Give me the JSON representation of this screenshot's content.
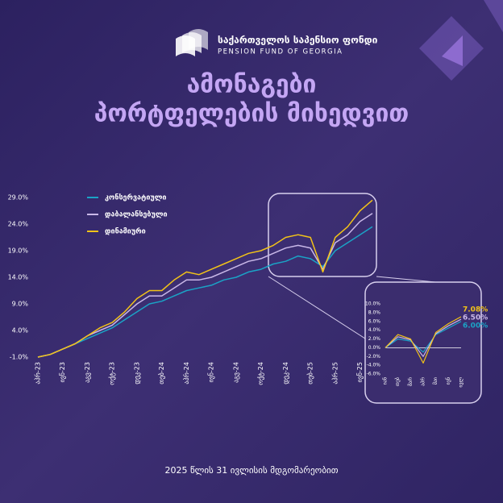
{
  "header": {
    "logo_text": "საქართველოს საპენსიო ფონდი",
    "logo_subtext": "PENSION FUND OF GEORGIA",
    "title": [
      "ამონაგები",
      "პორტფელების მიხედვით"
    ]
  },
  "footer": "2025 წლის 31 ივლისის მდგომარეობით",
  "chart_data": [
    {
      "type": "line",
      "legend": "upper left",
      "categories": [
        "აპრ-23",
        null,
        "ივნ-23",
        null,
        "აგვ-23",
        null,
        "ოქტ-23",
        null,
        "დეკ-23",
        null,
        "თებ-24",
        null,
        "აპრ-24",
        null,
        "ივნ-24",
        null,
        "აგვ-24",
        null,
        "ოქტ-24",
        null,
        "დეკ-24",
        null,
        "თებ-25",
        null,
        "აპრ-25",
        null,
        "ივნ-25",
        null
      ],
      "ylim": [
        -1,
        29
      ],
      "yticks": [
        {
          "value": -1,
          "label": "-1.0%"
        },
        {
          "value": 4,
          "label": "4.0%"
        },
        {
          "value": 9,
          "label": "9.0%"
        },
        {
          "value": 14,
          "label": "14.0%"
        },
        {
          "value": 19,
          "label": "19.0%"
        },
        {
          "value": 24,
          "label": "24.0%"
        },
        {
          "value": 29,
          "label": "29.0%"
        }
      ],
      "series": [
        {
          "name": "კონსერვატიული",
          "color": "#1ba3c6",
          "values": [
            -1.0,
            -0.5,
            0.5,
            1.5,
            2.5,
            3.5,
            4.5,
            6.0,
            7.5,
            9.0,
            9.5,
            10.5,
            11.5,
            12.0,
            12.5,
            13.5,
            14.0,
            15.0,
            15.5,
            16.5,
            17.0,
            18.0,
            17.5,
            16.0,
            19.0,
            20.5,
            22.0,
            23.5
          ]
        },
        {
          "name": "დაბალანსებული",
          "color": "#c9b8e8",
          "values": [
            -1.0,
            -0.5,
            0.5,
            1.5,
            3.0,
            4.0,
            5.0,
            7.0,
            9.0,
            10.5,
            10.5,
            12.0,
            13.5,
            13.5,
            14.0,
            15.0,
            16.0,
            17.0,
            17.5,
            18.5,
            19.5,
            20.0,
            19.5,
            15.5,
            20.5,
            22.0,
            24.5,
            26.0
          ]
        },
        {
          "name": "დინამიური",
          "color": "#f2c318",
          "values": [
            -1.0,
            -0.5,
            0.5,
            1.5,
            3.0,
            4.5,
            5.5,
            7.5,
            10.0,
            11.5,
            11.5,
            13.5,
            15.0,
            14.5,
            15.5,
            16.5,
            17.5,
            18.5,
            19.0,
            20.0,
            21.5,
            22.0,
            21.5,
            15.0,
            21.5,
            23.5,
            26.5,
            28.5
          ]
        }
      ]
    },
    {
      "type": "line",
      "hline": 0,
      "categories": [
        "იან",
        "თებ",
        "მარ",
        "აპრ",
        "მაი",
        "ივნ",
        "ივლ"
      ],
      "ylim": [
        -6,
        10
      ],
      "yticks": [
        {
          "value": -6,
          "label": "-6.0%"
        },
        {
          "value": -4,
          "label": "-4.0%"
        },
        {
          "value": -2,
          "label": "-2.0%"
        },
        {
          "value": 0,
          "label": "0.0%"
        },
        {
          "value": 2,
          "label": "2.0%"
        },
        {
          "value": 4,
          "label": "4.0%"
        },
        {
          "value": 6,
          "label": "6.0%"
        },
        {
          "value": 8,
          "label": "8.0%"
        },
        {
          "value": 10,
          "label": "10.0%"
        }
      ],
      "series": [
        {
          "name": "კონსერვატიული",
          "color": "#1ba3c6",
          "values": [
            0,
            2.0,
            1.5,
            -1.0,
            3.0,
            4.5,
            6.0
          ],
          "value_labels": [
            null,
            null,
            null,
            null,
            null,
            null,
            "6.00%"
          ]
        },
        {
          "name": "დაბალანსებული",
          "color": "#c9b8e8",
          "values": [
            0,
            2.5,
            1.8,
            -2.0,
            3.2,
            5.0,
            6.5
          ],
          "value_labels": [
            null,
            null,
            null,
            null,
            null,
            null,
            "6.50%"
          ]
        },
        {
          "name": "დინამიური",
          "color": "#f2c318",
          "values": [
            0,
            3.0,
            2.0,
            -3.5,
            3.5,
            5.5,
            7.08
          ],
          "value_labels": [
            null,
            null,
            null,
            null,
            null,
            null,
            "7.08%"
          ]
        }
      ]
    }
  ]
}
